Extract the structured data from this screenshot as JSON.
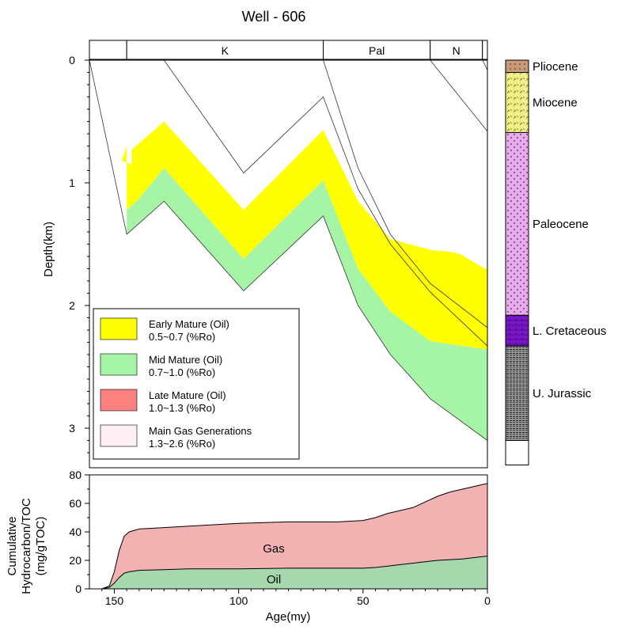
{
  "chart_data": [
    {
      "type": "area",
      "title": "Well - 606",
      "ylabel": "Depth(km)",
      "xlim": [
        160,
        0
      ],
      "ylim": [
        0,
        3.3
      ],
      "yticks": [
        "0",
        "1",
        "2",
        "3"
      ],
      "periods": [
        {
          "label": "",
          "start": 160,
          "end": 145
        },
        {
          "label": "K",
          "start": 145,
          "end": 66
        },
        {
          "label": "Pal",
          "start": 66,
          "end": 23
        },
        {
          "label": "N",
          "start": 23,
          "end": 2
        },
        {
          "label": "",
          "start": 2,
          "end": 0
        }
      ],
      "legend": [
        {
          "name": "Early Mature (Oil)",
          "range": "0.5~0.7  (%Ro)",
          "color": "#ffff00"
        },
        {
          "name": "Mid Mature (Oil)",
          "range": "0.7~1.0  (%Ro)",
          "color": "#a6f5a6"
        },
        {
          "name": "Late Mature (Oil)",
          "range": "1.0~1.3  (%Ro)",
          "color": "#fb8080"
        },
        {
          "name": "Main Gas Generations",
          "range": "1.3~2.6  (%Ro)",
          "color": "#fff0f5"
        }
      ],
      "early_mature_top": [
        [
          145,
          0.7
        ],
        [
          147,
          0.82
        ],
        [
          143,
          0.85
        ],
        [
          143,
          0.73
        ],
        [
          130,
          0.5
        ],
        [
          98,
          1.22
        ],
        [
          66,
          0.57
        ],
        [
          52,
          1.15
        ],
        [
          39,
          1.46
        ],
        [
          22,
          1.55
        ],
        [
          16,
          1.56
        ],
        [
          11,
          1.58
        ],
        [
          1,
          1.7
        ],
        [
          0,
          1.7
        ]
      ],
      "mid_mature_top": [
        [
          145,
          1.22
        ],
        [
          141,
          1.15
        ],
        [
          130,
          0.88
        ],
        [
          98,
          1.62
        ],
        [
          66,
          0.98
        ],
        [
          52,
          1.7
        ],
        [
          39,
          2.05
        ],
        [
          23,
          2.29
        ],
        [
          0,
          2.36
        ]
      ],
      "mid_mature_bottom": [
        [
          145,
          1.42
        ],
        [
          130,
          1.15
        ],
        [
          98,
          1.88
        ],
        [
          66,
          1.27
        ],
        [
          52,
          2.0
        ],
        [
          39,
          2.4
        ],
        [
          23,
          2.76
        ],
        [
          0,
          3.1
        ]
      ],
      "burial_lines": [
        [
          [
            160,
            0
          ],
          [
            145,
            1.42
          ],
          [
            130,
            1.15
          ],
          [
            98,
            1.88
          ],
          [
            66,
            1.27
          ],
          [
            52,
            2.0
          ],
          [
            39,
            2.4
          ],
          [
            23,
            2.76
          ],
          [
            0,
            3.1
          ]
        ],
        [
          [
            130,
            0
          ],
          [
            98,
            0.92
          ],
          [
            66,
            0.3
          ],
          [
            52,
            1.05
          ],
          [
            39,
            1.5
          ],
          [
            23,
            1.89
          ],
          [
            0,
            2.33
          ]
        ],
        [
          [
            66,
            0
          ],
          [
            52,
            0.88
          ],
          [
            39,
            1.42
          ],
          [
            23,
            1.82
          ],
          [
            0,
            2.18
          ]
        ],
        [
          [
            23,
            0
          ],
          [
            0,
            0.58
          ]
        ],
        [
          [
            2,
            0
          ],
          [
            0,
            0.08
          ]
        ]
      ],
      "strat_column": [
        {
          "label": "Pliocene",
          "top": 0,
          "bottom": 0.1,
          "color": "#c89a7a"
        },
        {
          "label": "Miocene",
          "top": 0.1,
          "bottom": 0.59,
          "color": "#f3f08a"
        },
        {
          "label": "Paleocene",
          "top": 0.59,
          "bottom": 2.08,
          "color": "#eaa8ee"
        },
        {
          "label": "L. Cretaceous",
          "top": 2.08,
          "bottom": 2.33,
          "color": "#7a16c8"
        },
        {
          "label": "U. Jurassic",
          "top": 2.33,
          "bottom": 3.1,
          "color": "#8c8c8c"
        },
        {
          "label": "",
          "top": 3.1,
          "bottom": 3.3,
          "color": "#ffffff"
        }
      ]
    },
    {
      "type": "area",
      "xlabel": "Age(my)",
      "ylabel": "Cumulative Hydrocarbon/TOC (mg/gTOC)",
      "ylabel_lines": [
        "Cumulative",
        "Hydrocarbon/TOC",
        "(mg/gTOC)"
      ],
      "xlim": [
        160,
        0
      ],
      "ylim": [
        0,
        80
      ],
      "xticks": [
        150,
        100,
        50,
        0
      ],
      "yticks": [
        0,
        20,
        40,
        60,
        80
      ],
      "series": [
        {
          "name": "Gas",
          "color": "#f2b2b2",
          "x": [
            155,
            152,
            150,
            148,
            146,
            144,
            140,
            130,
            120,
            110,
            100,
            80,
            60,
            50,
            45,
            40,
            35,
            30,
            25,
            20,
            15,
            10,
            5,
            0
          ],
          "values": [
            0,
            2,
            12,
            27,
            37,
            40,
            42,
            43,
            44,
            45,
            46,
            47,
            47,
            48,
            50,
            53,
            55,
            57,
            61,
            65,
            68,
            70,
            72,
            74
          ]
        },
        {
          "name": "Oil",
          "color": "#a6d7ad",
          "x": [
            155,
            152,
            150,
            148,
            146,
            144,
            140,
            130,
            120,
            110,
            100,
            80,
            60,
            50,
            45,
            40,
            35,
            30,
            25,
            20,
            15,
            10,
            5,
            0
          ],
          "values": [
            0,
            1,
            4,
            8,
            11,
            12,
            13,
            13.5,
            14,
            14,
            14,
            14.5,
            14.5,
            14.5,
            15,
            16,
            17,
            18,
            19,
            20,
            20.5,
            21,
            22,
            23
          ]
        }
      ]
    }
  ]
}
